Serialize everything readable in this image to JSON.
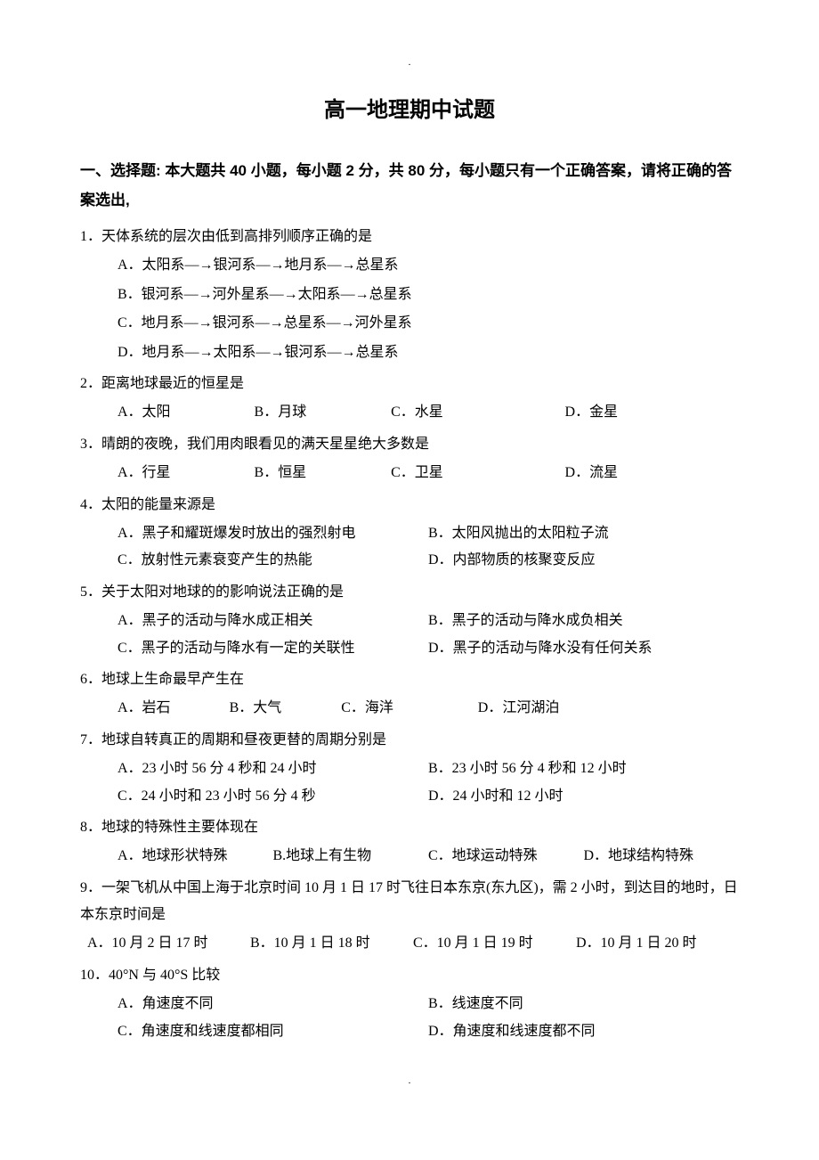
{
  "page_marker_top": ".",
  "page_marker_bottom": ".",
  "title": "高一地理期中试题",
  "section_header": "一、选择题: 本大题共 40 小题，每小题 2 分，共 80 分，每小题只有一个正确答案，请将正确的答案选出,",
  "questions": [
    {
      "num": "1．",
      "text": "天体系统的层次由低到高排列顺序正确的是",
      "layout": "block",
      "options": [
        "A．太阳系—→银河系—→地月系—→总星系",
        "B．银河系—→河外星系—→太阳系—→总星系",
        "C．地月系—→银河系—→总星系—→河外星系",
        "D．地月系—→太阳系—→银河系—→总星系"
      ]
    },
    {
      "num": "2．",
      "text": "距离地球最近的恒星是",
      "layout": "inline4",
      "options": [
        "A．太阳",
        "B．月球",
        "C．水星",
        "D．金星"
      ]
    },
    {
      "num": "3．",
      "text": "晴朗的夜晚，我们用肉眼看见的满天星星绝大多数是",
      "layout": "inline4",
      "options": [
        "A．行星",
        "B．恒星",
        "C．卫星",
        "D．流星"
      ]
    },
    {
      "num": "4．",
      "text": "太阳的能量来源是",
      "layout": "inline2",
      "options": [
        "A．黑子和耀斑爆发时放出的强烈射电",
        "B．太阳风抛出的太阳粒子流",
        "C．放射性元素衰变产生的热能",
        "D．内部物质的核聚变反应"
      ]
    },
    {
      "num": "5．",
      "text": "关于太阳对地球的的影响说法正确的是",
      "layout": "inline2",
      "options": [
        "A．黑子的活动与降水成正相关",
        "B．黑子的活动与降水成负相关",
        "C．黑子的活动与降水有一定的关联性",
        "D．黑子的活动与降水没有任何关系"
      ]
    },
    {
      "num": "6．",
      "text": "地球上生命最早产生在",
      "layout": "inline4b",
      "options": [
        "A．岩石",
        "B．大气",
        "C．海洋",
        "D．江河湖泊"
      ]
    },
    {
      "num": "7．",
      "text": "地球自转真正的周期和昼夜更替的周期分别是",
      "layout": "inline2",
      "options": [
        "A．23 小时 56 分 4 秒和 24 小时",
        "B．23 小时 56 分 4 秒和 12 小时",
        "C．24 小时和 23 小时 56 分 4 秒",
        "D．24 小时和 12 小时"
      ]
    },
    {
      "num": "8．",
      "text": "地球的特殊性主要体现在",
      "layout": "inline4c",
      "options": [
        "A．地球形状特殊",
        "B.地球上有生物",
        "C．地球运动特殊",
        "D．地球结构特殊"
      ]
    },
    {
      "num": "9．",
      "text": "一架飞机从中国上海于北京时间 10 月 1 日 17 时飞往日本东京(东九区)，需 2 小时，到达目的地时，日本东京时间是",
      "layout": "inline4d",
      "no_indent": true,
      "options": [
        "A．10 月 2 日 17 时",
        "B．10 月 1 日 18 时",
        "C．10 月 1 日 19 时",
        "D．10 月 1 日 20 时"
      ]
    },
    {
      "num": "10．",
      "text": "40°N 与 40°S 比较",
      "layout": "inline2",
      "options": [
        "A．角速度不同",
        "B．线速度不同",
        "C．角速度和线速度都相同",
        "D．角速度和线速度都不同"
      ]
    }
  ]
}
